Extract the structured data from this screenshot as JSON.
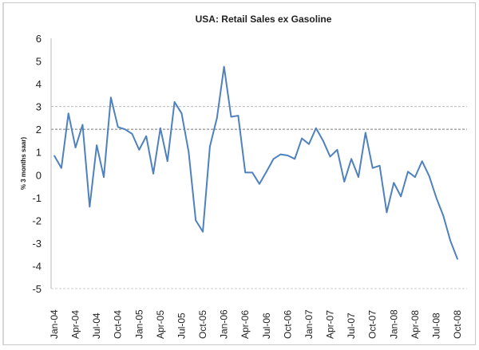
{
  "chart_data": {
    "type": "line",
    "title": "USA: Retail Sales ex Gasoline",
    "xlabel": "",
    "ylabel": "% 3 months saar)",
    "ylim": [
      -5,
      6
    ],
    "yticks": [
      6,
      5,
      4,
      3,
      2,
      1,
      0,
      -1,
      -2,
      -3,
      -4,
      -5
    ],
    "reference_lines": [
      3,
      2
    ],
    "grid": false,
    "line_color": "#4f81bd",
    "xtick_labels": [
      "Jan-04",
      "Apr-04",
      "Jul-04",
      "Oct-04",
      "Jan-05",
      "Apr-05",
      "Jul-05",
      "Oct-05",
      "Jan-06",
      "Apr-06",
      "Jul-06",
      "Oct-06",
      "Jan-07",
      "Apr-07",
      "Jul-07",
      "Oct-07",
      "Jan-08",
      "Apr-08",
      "Jul-08",
      "Oct-08"
    ],
    "x_start": "Jan-04",
    "x_end": "Oct-08",
    "series": [
      {
        "values": [
          0.84,
          0.3,
          2.7,
          1.2,
          2.2,
          -1.4,
          1.3,
          -0.1,
          3.4,
          2.1,
          2.0,
          1.8,
          1.1,
          1.7,
          0.05,
          2.05,
          0.6,
          3.2,
          2.7,
          1.0,
          -2.0,
          -2.5,
          1.25,
          2.5,
          4.75,
          2.55,
          2.6,
          0.1,
          0.1,
          -0.4,
          0.14,
          0.7,
          0.9,
          0.85,
          0.7,
          1.6,
          1.35,
          2.05,
          1.5,
          0.8,
          1.1,
          -0.3,
          0.7,
          -0.1,
          1.85,
          0.3,
          0.4,
          -1.65,
          -0.35,
          -0.95,
          0.14,
          -0.1,
          0.6,
          -0.05,
          -1.0,
          -1.8,
          -2.9,
          -3.7
        ]
      }
    ]
  }
}
